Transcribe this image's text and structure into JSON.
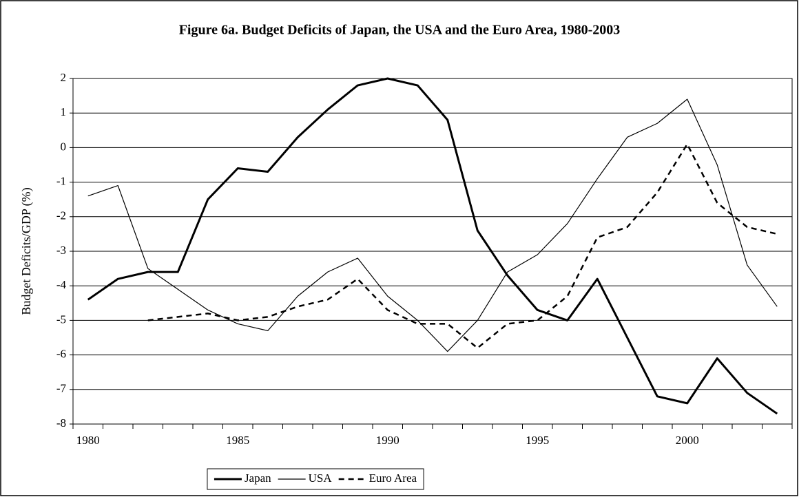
{
  "chart_data": {
    "type": "line",
    "title": "Figure 6a. Budget Deficits of Japan, the USA and the Euro Area, 1980-2003",
    "y_label": "Budget Deficits/GDP (%)",
    "categories": [
      "1980",
      null,
      null,
      null,
      null,
      "1985",
      null,
      null,
      null,
      null,
      "1990",
      null,
      null,
      null,
      null,
      "1995",
      null,
      null,
      null,
      null,
      "2000",
      null,
      null,
      null
    ],
    "series": [
      {
        "name": "Japan",
        "color": "#000000",
        "line_width": 3,
        "line_style": "solid",
        "values": [
          -4.4,
          -3.8,
          -3.6,
          -3.6,
          -1.5,
          -0.6,
          -0.7,
          0.3,
          1.1,
          1.8,
          2.0,
          1.8,
          0.8,
          -2.4,
          -3.7,
          -4.7,
          -5.0,
          -3.8,
          -5.5,
          -7.2,
          -7.4,
          -6.1,
          -7.1,
          -7.7
        ]
      },
      {
        "name": "USA",
        "color": "#000000",
        "line_width": 1.2,
        "line_style": "solid",
        "values": [
          -1.4,
          -1.1,
          -3.5,
          -4.1,
          -4.7,
          -5.1,
          -5.3,
          -4.3,
          -3.6,
          -3.2,
          -4.3,
          -5.0,
          -5.9,
          -5.0,
          -3.6,
          -3.1,
          -2.2,
          -0.9,
          0.3,
          0.7,
          1.4,
          -0.5,
          -3.4,
          -4.6
        ]
      },
      {
        "name": "Euro Area",
        "color": "#000000",
        "line_width": 2.5,
        "line_style": "dashed",
        "values": [
          null,
          null,
          -5.0,
          -4.9,
          -4.8,
          -5.0,
          -4.9,
          -4.6,
          -4.4,
          -3.8,
          -4.7,
          -5.1,
          -5.1,
          -5.8,
          -5.1,
          -5.0,
          -4.3,
          -2.6,
          -2.3,
          -1.3,
          0.1,
          -1.6,
          -2.3,
          -2.5
        ]
      }
    ],
    "ylim": [
      -8,
      2
    ],
    "yticks": [
      -8,
      -7,
      -6,
      -5,
      -4,
      -3,
      -2,
      -1,
      0,
      1,
      2
    ],
    "grid": true,
    "legend": "bottom"
  }
}
